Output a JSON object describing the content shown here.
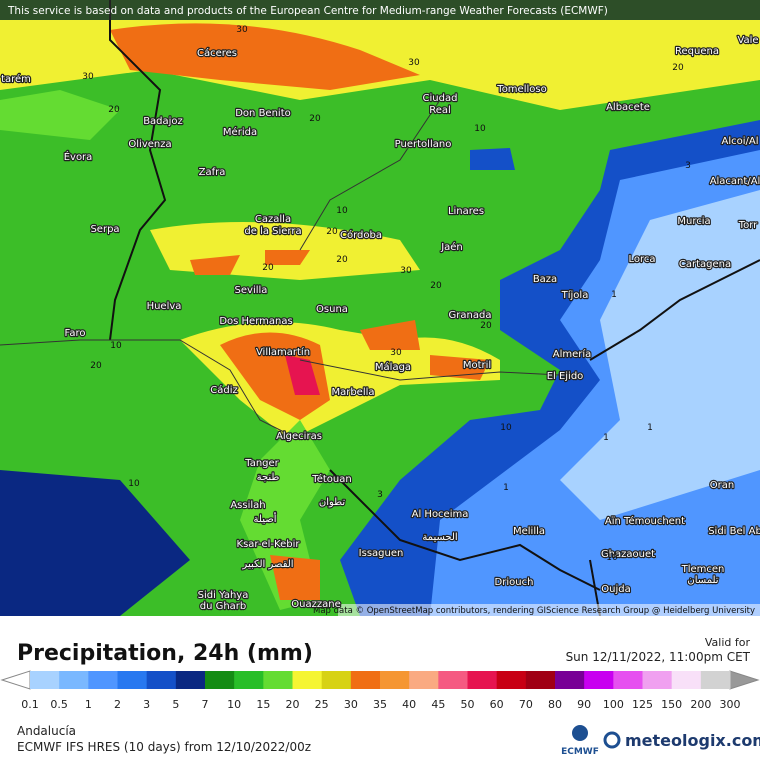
{
  "banner": "This service is based on data and products of the European Centre for Medium-range Weather Forecasts (ECMWF)",
  "attribution": "Map data © OpenStreetMap contributors, rendering GIScience Research Group @ Heidelberg University",
  "places": [
    "Cáceres",
    "tarém",
    "Requena",
    "Vale",
    "Tomelloso",
    "Ciudad",
    "Real",
    "Don Benito",
    "Badajoz",
    "Mérida",
    "Albacete",
    "Olivenza",
    "Puertollano",
    "Évora",
    "Alcoi/Al",
    "Zafra",
    "Alacant/Al",
    "Murcia",
    "Torr",
    "Cazalla",
    "de la Sierra",
    "Serpa",
    "Linares",
    "Córdoba",
    "Jaén",
    "Lorca",
    "Cartagena",
    "Baza",
    "Sevilla",
    "Tíjola",
    "Huelva",
    "Osuna",
    "Granada",
    "Dos Hermanas",
    "Faro",
    "Villamartín",
    "Almería",
    "Málaga",
    "Motril",
    "El Ejido",
    "Cádiz",
    "Marbella",
    "Algeciras",
    "Tanger",
    "طنجة",
    "Tétouan",
    "تطوان",
    "Oran",
    "Assilah",
    "أصيلة",
    "Al Hoceima",
    "الحسيمة",
    "Aïn Témouchent",
    "Melilla",
    "Sidi Bel Ab",
    "Ksar-el-Kebir",
    "القصر الكبير",
    "Ghazaouet",
    "Issaguen",
    "Tlemcen",
    "تلمسان",
    "Driouch",
    "Oujda",
    "Sidi Yahya",
    "du Gharb",
    "Ouazzane"
  ],
  "contour_labels": [
    30,
    30,
    30,
    20,
    20,
    20,
    10,
    10,
    20,
    20,
    30,
    20,
    20,
    10,
    20,
    30,
    20,
    10,
    10,
    3,
    1,
    1,
    1,
    10,
    1,
    3
  ],
  "panel": {
    "title": "Precipitation, 24h (mm)",
    "valid_label": "Valid for",
    "valid_time": "Sun 12/11/2022, 11:00pm CET",
    "region": "Andalucía",
    "model": "ECMWF IFS HRES (10 days) from 12/10/2022/00z",
    "logo": "ECMWF",
    "brand": "meteologix.com"
  },
  "legend": {
    "values": [
      0.1,
      0.5,
      1,
      2,
      3,
      5,
      7,
      10,
      15,
      20,
      25,
      30,
      35,
      40,
      45,
      50,
      60,
      70,
      80,
      90,
      100,
      125,
      150,
      200,
      300
    ],
    "colors": [
      "#a8d2ff",
      "#7ab8ff",
      "#5096ff",
      "#2878f0",
      "#1450c8",
      "#0a2882",
      "#148c14",
      "#28be28",
      "#64dc32",
      "#f5f532",
      "#d7d214",
      "#f06e14",
      "#f59632",
      "#faaa82",
      "#f55a82",
      "#e61450",
      "#c80014",
      "#a00014",
      "#780096",
      "#c800f0",
      "#e650f0",
      "#f0a0f0",
      "#f8e0f8",
      "#d2d2d2"
    ]
  }
}
